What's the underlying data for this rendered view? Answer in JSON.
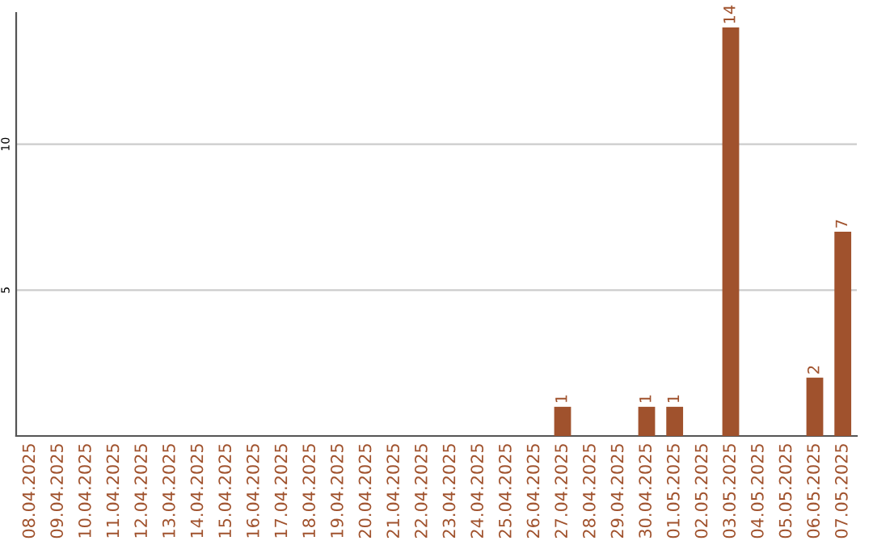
{
  "chart_data": {
    "type": "bar",
    "categories": [
      "08.04.2025",
      "09.04.2025",
      "10.04.2025",
      "11.04.2025",
      "12.04.2025",
      "13.04.2025",
      "14.04.2025",
      "15.04.2025",
      "16.04.2025",
      "17.04.2025",
      "18.04.2025",
      "19.04.2025",
      "20.04.2025",
      "21.04.2025",
      "22.04.2025",
      "23.04.2025",
      "24.04.2025",
      "25.04.2025",
      "26.04.2025",
      "27.04.2025",
      "28.04.2025",
      "29.04.2025",
      "30.04.2025",
      "01.05.2025",
      "02.05.2025",
      "03.05.2025",
      "04.05.2025",
      "05.05.2025",
      "06.05.2025",
      "07.05.2025"
    ],
    "values": [
      0,
      0,
      0,
      0,
      0,
      0,
      0,
      0,
      0,
      0,
      0,
      0,
      0,
      0,
      0,
      0,
      0,
      0,
      0,
      1,
      0,
      0,
      1,
      1,
      0,
      14,
      0,
      0,
      2,
      7
    ],
    "value_labels": [
      null,
      null,
      null,
      null,
      null,
      null,
      null,
      null,
      null,
      null,
      null,
      null,
      null,
      null,
      null,
      null,
      null,
      null,
      null,
      "1",
      null,
      null,
      "1",
      "1",
      null,
      "14",
      null,
      null,
      "2",
      "7"
    ],
    "color": "#a0522d",
    "ylim": [
      0,
      14.5
    ],
    "yticks": [
      5,
      10
    ],
    "grid": "y",
    "legend": false
  }
}
